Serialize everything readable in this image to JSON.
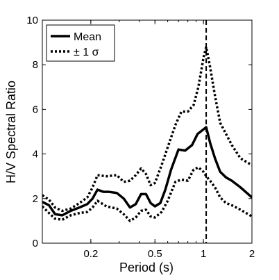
{
  "chart_data": {
    "type": "line",
    "xlabel": "Period (s)",
    "ylabel": "H/V Spectral Ratio",
    "x_scale": "log",
    "xlim": [
      0.1,
      2
    ],
    "ylim": [
      0,
      10
    ],
    "x_ticks": [
      {
        "value": 0.2,
        "label": "0.2"
      },
      {
        "value": 0.5,
        "label": "0.5"
      },
      {
        "value": 1,
        "label": "1"
      },
      {
        "value": 2,
        "label": "2"
      }
    ],
    "y_ticks": [
      0,
      2,
      4,
      6,
      8,
      10
    ],
    "grid": false,
    "legend_position": "top-left",
    "peak_period_line": 1.04,
    "series": [
      {
        "name": "Mean",
        "style": "solid",
        "color": "#000000",
        "points": [
          [
            0.1,
            1.85
          ],
          [
            0.11,
            1.7
          ],
          [
            0.12,
            1.3
          ],
          [
            0.133,
            1.25
          ],
          [
            0.15,
            1.45
          ],
          [
            0.17,
            1.6
          ],
          [
            0.19,
            1.75
          ],
          [
            0.205,
            2.0
          ],
          [
            0.22,
            2.4
          ],
          [
            0.24,
            2.3
          ],
          [
            0.26,
            2.3
          ],
          [
            0.29,
            2.25
          ],
          [
            0.32,
            2.0
          ],
          [
            0.35,
            1.6
          ],
          [
            0.38,
            1.75
          ],
          [
            0.41,
            2.2
          ],
          [
            0.44,
            2.2
          ],
          [
            0.47,
            1.8
          ],
          [
            0.5,
            1.65
          ],
          [
            0.54,
            1.8
          ],
          [
            0.58,
            2.4
          ],
          [
            0.63,
            3.3
          ],
          [
            0.7,
            4.2
          ],
          [
            0.77,
            4.15
          ],
          [
            0.85,
            4.4
          ],
          [
            0.92,
            4.9
          ],
          [
            1.0,
            5.1
          ],
          [
            1.04,
            5.2
          ],
          [
            1.1,
            4.5
          ],
          [
            1.18,
            3.8
          ],
          [
            1.27,
            3.2
          ],
          [
            1.38,
            2.95
          ],
          [
            1.5,
            2.8
          ],
          [
            1.7,
            2.5
          ],
          [
            2.0,
            2.05
          ]
        ]
      },
      {
        "name": "± 1 σ",
        "style": "dotted",
        "color": "#000000",
        "points": [
          [
            0.1,
            2.15
          ],
          [
            0.11,
            1.95
          ],
          [
            0.12,
            1.6
          ],
          [
            0.133,
            1.45
          ],
          [
            0.15,
            1.55
          ],
          [
            0.17,
            1.8
          ],
          [
            0.19,
            2.05
          ],
          [
            0.205,
            2.5
          ],
          [
            0.22,
            3.05
          ],
          [
            0.25,
            3.0
          ],
          [
            0.29,
            3.05
          ],
          [
            0.32,
            2.75
          ],
          [
            0.35,
            2.8
          ],
          [
            0.38,
            3.05
          ],
          [
            0.41,
            3.35
          ],
          [
            0.44,
            3.1
          ],
          [
            0.47,
            2.6
          ],
          [
            0.5,
            2.7
          ],
          [
            0.55,
            3.5
          ],
          [
            0.6,
            4.3
          ],
          [
            0.67,
            5.3
          ],
          [
            0.73,
            5.9
          ],
          [
            0.8,
            5.9
          ],
          [
            0.87,
            6.2
          ],
          [
            0.93,
            7.0
          ],
          [
            1.0,
            8.3
          ],
          [
            1.04,
            8.8
          ],
          [
            1.1,
            7.9
          ],
          [
            1.18,
            6.6
          ],
          [
            1.27,
            5.4
          ],
          [
            1.38,
            4.9
          ],
          [
            1.5,
            4.4
          ],
          [
            1.7,
            3.8
          ],
          [
            2.0,
            3.5
          ]
        ]
      },
      {
        "name": "",
        "style": "dotted",
        "color": "#000000",
        "points": [
          [
            0.1,
            1.65
          ],
          [
            0.11,
            1.35
          ],
          [
            0.12,
            1.1
          ],
          [
            0.133,
            1.05
          ],
          [
            0.15,
            1.25
          ],
          [
            0.17,
            1.35
          ],
          [
            0.19,
            1.4
          ],
          [
            0.205,
            1.6
          ],
          [
            0.22,
            1.9
          ],
          [
            0.25,
            1.65
          ],
          [
            0.29,
            1.55
          ],
          [
            0.32,
            1.3
          ],
          [
            0.35,
            1.0
          ],
          [
            0.38,
            1.15
          ],
          [
            0.41,
            1.45
          ],
          [
            0.44,
            1.5
          ],
          [
            0.47,
            1.2
          ],
          [
            0.5,
            1.15
          ],
          [
            0.55,
            1.4
          ],
          [
            0.6,
            1.9
          ],
          [
            0.67,
            2.75
          ],
          [
            0.73,
            2.85
          ],
          [
            0.8,
            2.8
          ],
          [
            0.87,
            3.3
          ],
          [
            0.93,
            3.4
          ],
          [
            1.0,
            3.2
          ],
          [
            1.04,
            3.0
          ],
          [
            1.1,
            2.8
          ],
          [
            1.18,
            2.5
          ],
          [
            1.27,
            2.05
          ],
          [
            1.38,
            1.8
          ],
          [
            1.5,
            1.7
          ],
          [
            1.7,
            1.5
          ],
          [
            2.0,
            1.2
          ]
        ]
      }
    ]
  }
}
